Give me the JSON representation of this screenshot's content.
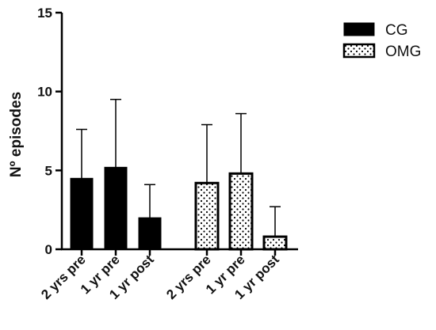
{
  "chart_data": {
    "type": "bar",
    "ylabel": "Nº episodes",
    "xlabel": "",
    "ylim": [
      0,
      15
    ],
    "yticks": [
      "0",
      "5",
      "10",
      "15"
    ],
    "grid": false,
    "legend_position": "top-right",
    "legend": [
      {
        "name": "CG",
        "pattern": "solid",
        "color": "#000000"
      },
      {
        "name": "OMG",
        "pattern": "dotted",
        "color": "#000000"
      }
    ],
    "series": [
      {
        "name": "CG",
        "pattern": "solid",
        "categories": [
          "2 yrs pre",
          "1 yr pre",
          "1 yr post"
        ],
        "values": [
          4.5,
          5.2,
          2.0
        ],
        "errors_upper": [
          7.6,
          9.5,
          4.1
        ]
      },
      {
        "name": "OMG",
        "pattern": "dotted",
        "categories": [
          "2 yrs pre",
          "1 yr pre",
          "1 yr post"
        ],
        "values": [
          4.2,
          4.8,
          0.8
        ],
        "errors_upper": [
          7.9,
          8.6,
          2.7
        ]
      }
    ]
  }
}
